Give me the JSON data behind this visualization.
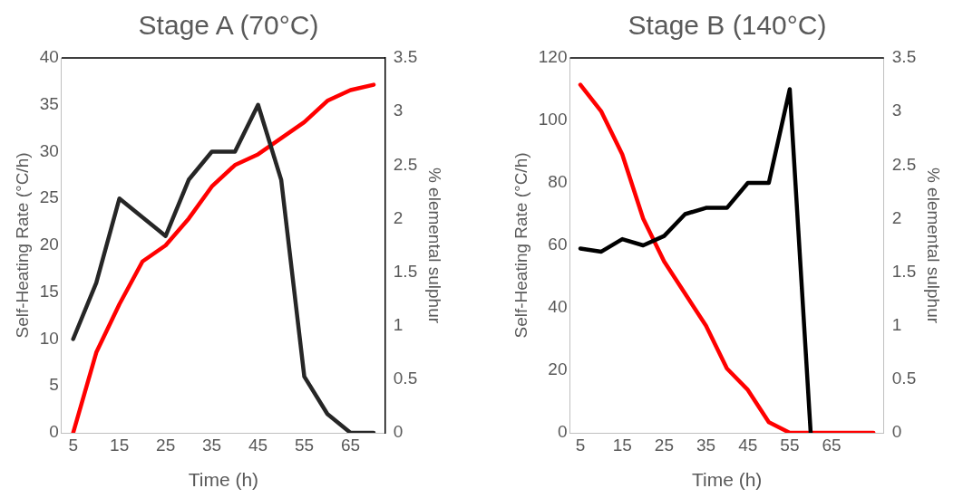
{
  "chart_data": [
    {
      "type": "line",
      "title": "Stage A (70°C)",
      "xlabel": "Time (h)",
      "ylabel": "Self-Heating Rate (°C/h)",
      "y2label": "% elemental sulphur",
      "categories": [
        "5",
        null,
        "15",
        null,
        "25",
        null,
        "35",
        null,
        "45",
        null,
        "55",
        null,
        "65",
        null
      ],
      "series": [
        {
          "color": "#262626",
          "values": [
            10,
            16,
            25,
            23,
            21,
            27,
            30,
            30,
            35,
            27,
            6,
            2,
            0,
            0
          ]
        },
        {
          "color": "#ff0000",
          "axis": "y2",
          "values": [
            0,
            0.75,
            1.2,
            1.6,
            1.75,
            2.0,
            2.3,
            2.5,
            2.6,
            2.75,
            2.9,
            3.1,
            3.2,
            3.25
          ]
        }
      ],
      "ylim": [
        0,
        40
      ],
      "yticks": [
        0,
        5,
        10,
        15,
        20,
        25,
        30,
        35,
        40
      ],
      "y2lim": [
        0,
        3.5
      ],
      "y2ticks": [
        0,
        0.5,
        1,
        1.5,
        2,
        2.5,
        3,
        3.5
      ],
      "grid": false,
      "legend": false,
      "marker": "none",
      "line_style": "solid"
    },
    {
      "type": "line",
      "title": "Stage B (140°C)",
      "xlabel": "Time (h)",
      "ylabel": "Self-Heating Rate (°C/h)",
      "y2label": "% elemental sulphur",
      "categories": [
        "5",
        null,
        "15",
        null,
        "25",
        null,
        "35",
        null,
        "45",
        null,
        "55",
        null,
        "65",
        null,
        null
      ],
      "series": [
        {
          "color": "#000000",
          "values": [
            59,
            58,
            62,
            60,
            63,
            70,
            72,
            72,
            80,
            80,
            110,
            0,
            null,
            null,
            null
          ]
        },
        {
          "color": "#ff0000",
          "axis": "y2",
          "values": [
            3.25,
            3.0,
            2.6,
            2.0,
            1.6,
            1.3,
            1.0,
            0.6,
            0.4,
            0.1,
            0,
            0,
            0,
            0,
            0
          ]
        }
      ],
      "ylim": [
        0,
        120
      ],
      "yticks": [
        0,
        20,
        40,
        60,
        80,
        100,
        120
      ],
      "y2lim": [
        0,
        3.5
      ],
      "y2ticks": [
        0,
        0.5,
        1,
        1.5,
        2,
        2.5,
        3,
        3.5
      ],
      "grid": false,
      "legend": false,
      "marker": "none",
      "line_style": "solid"
    }
  ]
}
